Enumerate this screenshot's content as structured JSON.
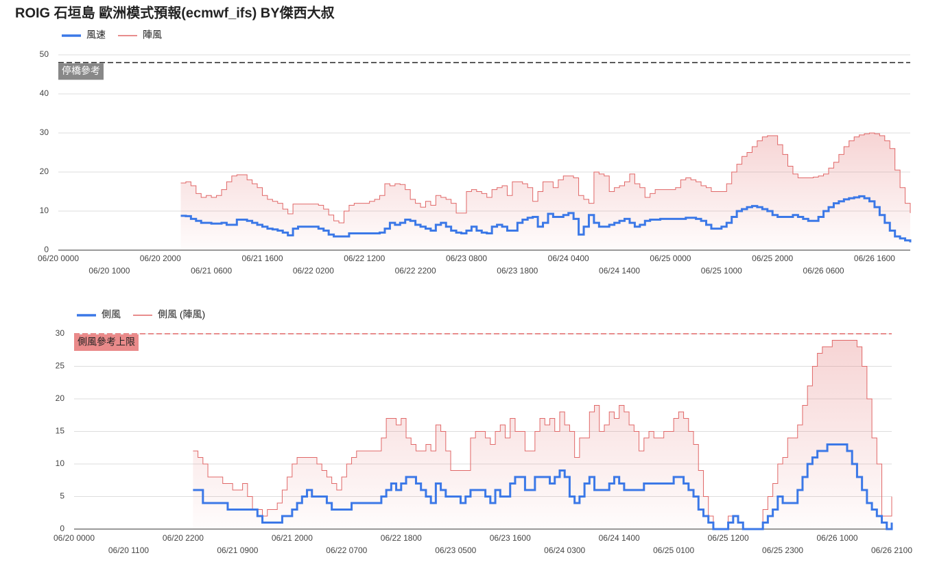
{
  "chart_data": [
    {
      "type": "line",
      "step": true,
      "title": "ROIG 石垣島 歐洲模式預報(ecmwf_ifs)  BY傑西大叔",
      "x": [
        "06/21 0000",
        "06/21 0100",
        "06/21 0200",
        "06/21 0300",
        "06/21 0400",
        "06/21 0500",
        "06/21 0600",
        "06/21 0700",
        "06/21 0800",
        "06/21 0900",
        "06/21 1000",
        "06/21 1100",
        "06/21 1200",
        "06/21 1300",
        "06/21 1400",
        "06/21 1500",
        "06/21 1600",
        "06/21 1700",
        "06/21 1800",
        "06/21 1900",
        "06/21 2000",
        "06/21 2100",
        "06/21 2200",
        "06/21 2300",
        "06/22 0000",
        "06/22 0100",
        "06/22 0200",
        "06/22 0300",
        "06/22 0400",
        "06/22 0500",
        "06/22 0600",
        "06/22 0700",
        "06/22 0800",
        "06/22 0900",
        "06/22 1000",
        "06/22 1100",
        "06/22 1200",
        "06/22 1300",
        "06/22 1400",
        "06/22 1500",
        "06/22 1600",
        "06/22 1700",
        "06/22 1800",
        "06/22 1900",
        "06/22 2000",
        "06/22 2100",
        "06/22 2200",
        "06/22 2300",
        "06/23 0000",
        "06/23 0100",
        "06/23 0200",
        "06/23 0300",
        "06/23 0400",
        "06/23 0500",
        "06/23 0600",
        "06/23 0700",
        "06/23 0800",
        "06/23 0900",
        "06/23 1000",
        "06/23 1100",
        "06/23 1200",
        "06/23 1300",
        "06/23 1400",
        "06/23 1500",
        "06/23 1600",
        "06/23 1700",
        "06/23 1800",
        "06/23 1900",
        "06/23 2000",
        "06/23 2100",
        "06/23 2200",
        "06/23 2300",
        "06/24 0000",
        "06/24 0100",
        "06/24 0200",
        "06/24 0300",
        "06/24 0400",
        "06/24 0500",
        "06/24 0600",
        "06/24 0700",
        "06/24 0800",
        "06/24 0900",
        "06/24 1000",
        "06/24 1100",
        "06/24 1200",
        "06/24 1300",
        "06/24 1400",
        "06/24 1500",
        "06/24 1600",
        "06/24 1700",
        "06/24 1800",
        "06/24 1900",
        "06/24 2000",
        "06/24 2100",
        "06/24 2200",
        "06/24 2300",
        "06/25 0000",
        "06/25 0100",
        "06/25 0200",
        "06/25 0300",
        "06/25 0400",
        "06/25 0500",
        "06/25 0600",
        "06/25 0700",
        "06/25 0800",
        "06/25 0900",
        "06/25 1000",
        "06/25 1100",
        "06/25 1200",
        "06/25 1300",
        "06/25 1400",
        "06/25 1500",
        "06/25 1600",
        "06/25 1700",
        "06/25 1800",
        "06/25 1900",
        "06/25 2000",
        "06/25 2100",
        "06/25 2200",
        "06/25 2300",
        "06/26 0000",
        "06/26 0100",
        "06/26 0200",
        "06/26 0300",
        "06/26 0400",
        "06/26 0500",
        "06/26 0600",
        "06/26 0700",
        "06/26 0800",
        "06/26 0900",
        "06/26 1000",
        "06/26 1100",
        "06/26 1200",
        "06/26 1300",
        "06/26 1400",
        "06/26 1500",
        "06/26 1600",
        "06/26 1700",
        "06/26 1800",
        "06/26 1900",
        "06/26 2000",
        "06/26 2100",
        "06/26 2200",
        "06/26 2300"
      ],
      "series": [
        {
          "name": "風速",
          "color": "#3b78e7",
          "width": 3,
          "fill": false,
          "values": [
            8.8,
            8.7,
            8,
            7.5,
            7,
            7,
            6.8,
            6.8,
            7,
            6.5,
            6.5,
            7.8,
            7.8,
            7.5,
            7,
            6.5,
            6,
            5.5,
            5.3,
            5,
            4.5,
            3.8,
            5.5,
            6,
            6,
            6,
            6,
            5.5,
            5,
            4,
            3.5,
            3.5,
            3.5,
            4.3,
            4.3,
            4.3,
            4.3,
            4.3,
            4.3,
            4.5,
            5.5,
            7,
            6.5,
            7,
            7.8,
            7.5,
            6.5,
            6,
            5.5,
            5,
            6.5,
            7,
            6,
            5,
            4.5,
            4.3,
            5,
            6,
            5,
            4.5,
            4.3,
            6,
            6.5,
            6,
            5,
            5,
            7,
            7.8,
            8.3,
            8.5,
            6,
            7,
            9.3,
            8.5,
            8.5,
            9,
            9.5,
            8,
            4,
            6,
            9,
            7,
            6,
            6,
            6.5,
            7,
            7.5,
            8,
            7,
            6,
            6.5,
            7.5,
            7.8,
            7.8,
            8,
            8,
            8,
            8,
            8,
            8.3,
            8.3,
            8,
            7.5,
            6.5,
            5.5,
            5.5,
            6,
            7,
            8.5,
            10,
            10.5,
            11,
            11.3,
            11,
            10.5,
            10,
            9,
            8.5,
            8.5,
            8.5,
            9,
            8.5,
            8,
            7.5,
            7.5,
            8.5,
            10,
            11,
            12,
            12.5,
            13,
            13.3,
            13.5,
            13.8,
            13.3,
            12.5,
            11,
            9,
            7,
            5,
            3.5,
            3,
            2.5,
            2
          ]
        },
        {
          "name": "陣風",
          "color": "#e06666",
          "width": 1,
          "fill": true,
          "values": [
            17.2,
            17.5,
            16.5,
            14.5,
            13.5,
            14,
            13.5,
            14,
            15.5,
            17.5,
            19,
            19.3,
            19.3,
            18,
            17,
            16,
            14,
            13,
            12.5,
            12,
            10.5,
            9.3,
            11.8,
            11.8,
            11.8,
            11.8,
            11.8,
            11.5,
            10.5,
            9,
            7.5,
            7,
            10,
            11.5,
            12,
            12,
            12,
            12.5,
            13,
            14,
            17,
            16.5,
            17,
            16.8,
            15.5,
            13,
            12,
            11,
            12.5,
            11.5,
            14,
            13.5,
            13,
            12,
            9.5,
            9.5,
            15,
            15.5,
            15,
            14.5,
            13.5,
            15.5,
            16,
            16.5,
            14,
            17.5,
            17.5,
            17,
            16,
            12.5,
            15,
            17.5,
            17.5,
            16,
            18,
            19,
            19,
            18.5,
            14,
            13,
            12,
            20,
            19.5,
            19,
            15,
            16,
            16.5,
            17.5,
            19.5,
            17,
            16,
            13.5,
            14.5,
            15.5,
            15.5,
            15.5,
            15.5,
            16,
            18,
            18.5,
            18,
            17.5,
            16.5,
            16,
            15,
            15,
            15,
            17,
            20,
            22,
            24,
            25,
            26.5,
            28,
            29,
            29.3,
            29.3,
            27,
            24.5,
            21.5,
            19.5,
            18.5,
            18.5,
            18.5,
            18.7,
            19,
            19.5,
            21,
            22.5,
            24.5,
            26.5,
            28,
            29,
            29.5,
            29.8,
            30,
            29.8,
            29.3,
            28,
            26,
            20.5,
            16,
            12,
            9.5
          ]
        }
      ],
      "xlim": [
        "06/20 0000",
        "06/26 2300"
      ],
      "xticks": [
        "06/20 0000",
        "06/20 1000",
        "06/20 2000",
        "06/21 0600",
        "06/21 1600",
        "06/22 0200",
        "06/22 1200",
        "06/22 2200",
        "06/23 0800",
        "06/23 1800",
        "06/24 0400",
        "06/24 1400",
        "06/25 0000",
        "06/25 1000",
        "06/25 2000",
        "06/26 0600",
        "06/26 1600"
      ],
      "ylim": [
        0,
        50
      ],
      "yticks": [
        0,
        10,
        20,
        30,
        40,
        50
      ],
      "grid": true,
      "reference": {
        "value": 48,
        "label": "停橋參考",
        "color": "#222",
        "label_background": "#888",
        "label_color": "#fff"
      }
    },
    {
      "type": "line",
      "step": true,
      "x": [
        "06/21 0000",
        "06/21 0100",
        "06/21 0200",
        "06/21 0300",
        "06/21 0400",
        "06/21 0500",
        "06/21 0600",
        "06/21 0700",
        "06/21 0800",
        "06/21 0900",
        "06/21 1000",
        "06/21 1100",
        "06/21 1200",
        "06/21 1300",
        "06/21 1400",
        "06/21 1500",
        "06/21 1600",
        "06/21 1700",
        "06/21 1800",
        "06/21 1900",
        "06/21 2000",
        "06/21 2100",
        "06/21 2200",
        "06/21 2300",
        "06/22 0000",
        "06/22 0100",
        "06/22 0200",
        "06/22 0300",
        "06/22 0400",
        "06/22 0500",
        "06/22 0600",
        "06/22 0700",
        "06/22 0800",
        "06/22 0900",
        "06/22 1000",
        "06/22 1100",
        "06/22 1200",
        "06/22 1300",
        "06/22 1400",
        "06/22 1500",
        "06/22 1600",
        "06/22 1700",
        "06/22 1800",
        "06/22 1900",
        "06/22 2000",
        "06/22 2100",
        "06/22 2200",
        "06/22 2300",
        "06/23 0000",
        "06/23 0100",
        "06/23 0200",
        "06/23 0300",
        "06/23 0400",
        "06/23 0500",
        "06/23 0600",
        "06/23 0700",
        "06/23 0800",
        "06/23 0900",
        "06/23 1000",
        "06/23 1100",
        "06/23 1200",
        "06/23 1300",
        "06/23 1400",
        "06/23 1500",
        "06/23 1600",
        "06/23 1700",
        "06/23 1800",
        "06/23 1900",
        "06/23 2000",
        "06/23 2100",
        "06/23 2200",
        "06/23 2300",
        "06/24 0000",
        "06/24 0100",
        "06/24 0200",
        "06/24 0300",
        "06/24 0400",
        "06/24 0500",
        "06/24 0600",
        "06/24 0700",
        "06/24 0800",
        "06/24 0900",
        "06/24 1000",
        "06/24 1100",
        "06/24 1200",
        "06/24 1300",
        "06/24 1400",
        "06/24 1500",
        "06/24 1600",
        "06/24 1700",
        "06/24 1800",
        "06/24 1900",
        "06/24 2000",
        "06/24 2100",
        "06/24 2200",
        "06/24 2300",
        "06/25 0000",
        "06/25 0100",
        "06/25 0200",
        "06/25 0300",
        "06/25 0400",
        "06/25 0500",
        "06/25 0600",
        "06/25 0700",
        "06/25 0800",
        "06/25 0900",
        "06/25 1000",
        "06/25 1100",
        "06/25 1200",
        "06/25 1300",
        "06/25 1400",
        "06/25 1500",
        "06/25 1600",
        "06/25 1700",
        "06/25 1800",
        "06/25 1900",
        "06/25 2000",
        "06/25 2100",
        "06/25 2200",
        "06/25 2300",
        "06/26 0000",
        "06/26 0100",
        "06/26 0200",
        "06/26 0300",
        "06/26 0400",
        "06/26 0500",
        "06/26 0600",
        "06/26 0700",
        "06/26 0800",
        "06/26 0900",
        "06/26 1000",
        "06/26 1100",
        "06/26 1200",
        "06/26 1300",
        "06/26 1400",
        "06/26 1500",
        "06/26 1600",
        "06/26 1700",
        "06/26 1800",
        "06/26 1900",
        "06/26 2000",
        "06/26 2100"
      ],
      "series": [
        {
          "name": "側風",
          "color": "#3b78e7",
          "width": 3,
          "fill": false,
          "values": [
            6,
            6,
            4,
            4,
            4,
            4,
            4,
            3,
            3,
            3,
            3,
            3,
            3,
            2,
            1,
            1,
            1,
            1,
            2,
            2,
            3,
            4,
            5,
            6,
            5,
            5,
            5,
            4,
            3,
            3,
            3,
            3,
            4,
            4,
            4,
            4,
            4,
            4,
            5,
            6,
            7,
            6,
            7,
            8,
            8,
            7,
            6,
            5,
            4,
            7,
            6,
            5,
            5,
            5,
            4,
            5,
            6,
            6,
            6,
            5,
            4,
            6,
            5,
            5,
            7,
            8,
            8,
            6,
            6,
            8,
            8,
            8,
            7,
            8,
            9,
            8,
            5,
            4,
            5,
            7,
            8,
            6,
            6,
            6,
            7,
            8,
            7,
            6,
            6,
            6,
            6,
            7,
            7,
            7,
            7,
            7,
            7,
            8,
            8,
            7,
            6,
            5,
            3,
            2,
            1,
            0,
            0,
            0,
            1,
            2,
            1,
            0,
            0,
            0,
            0,
            1,
            2,
            3,
            5,
            4,
            4,
            4,
            6,
            8,
            10,
            11,
            12,
            12,
            13,
            13,
            13,
            13,
            12,
            10,
            8,
            6,
            4,
            3,
            2,
            1,
            0,
            1
          ]
        },
        {
          "name": "側風 (陣風)",
          "color": "#e06666",
          "width": 1,
          "fill": true,
          "values": [
            12,
            11,
            10,
            8,
            8,
            8,
            7,
            7,
            6,
            6,
            7,
            5,
            3,
            3,
            2,
            3,
            3,
            4,
            6,
            8,
            10,
            11,
            11,
            11,
            11,
            10,
            9,
            8,
            7,
            6,
            8,
            10,
            11,
            12,
            12,
            12,
            12,
            12,
            14,
            17,
            17,
            16,
            17,
            14,
            13,
            12,
            12,
            13,
            12,
            16,
            15,
            12,
            9,
            9,
            9,
            9,
            14,
            15,
            15,
            14,
            13,
            15,
            16,
            14,
            17,
            15,
            15,
            12,
            12,
            15,
            17,
            16,
            17,
            15,
            18,
            16,
            15,
            11,
            14,
            14,
            18,
            19,
            15,
            16,
            18,
            17,
            19,
            18,
            16,
            15,
            12,
            14,
            15,
            14,
            14,
            15,
            15,
            17,
            18,
            17,
            15,
            13,
            9,
            5,
            2,
            0,
            0,
            0,
            2,
            2,
            1,
            0,
            0,
            0,
            0,
            3,
            5,
            7,
            10,
            11,
            14,
            14,
            16,
            19,
            22,
            25,
            27,
            28,
            28,
            29,
            29,
            29,
            29,
            29,
            28,
            25,
            20,
            14,
            10,
            2,
            2,
            5
          ]
        }
      ],
      "xlim": [
        "06/20 0000",
        "06/26 2100"
      ],
      "xticks": [
        "06/20 0000",
        "06/20 1100",
        "06/20 2200",
        "06/21 0900",
        "06/21 2000",
        "06/22 0700",
        "06/22 1800",
        "06/23 0500",
        "06/23 1600",
        "06/24 0300",
        "06/24 1400",
        "06/25 0100",
        "06/25 1200",
        "06/25 2300",
        "06/26 1000",
        "06/26 2100"
      ],
      "ylim": [
        0,
        30
      ],
      "yticks": [
        0,
        5,
        10,
        15,
        20,
        25,
        30
      ],
      "grid": true,
      "reference": {
        "value": 30,
        "label": "側風參考上限",
        "color": "#e06666",
        "label_background": "#ea8a8a",
        "label_color": "#222"
      }
    }
  ]
}
